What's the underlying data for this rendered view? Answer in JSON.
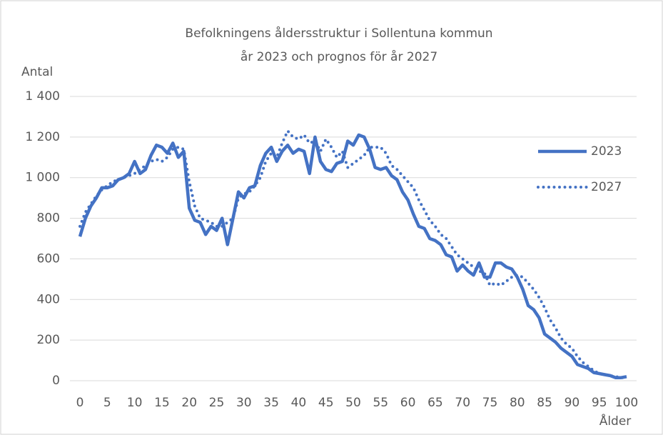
{
  "chart_data": {
    "type": "line",
    "title": [
      "Befolkningens åldersstruktur i Sollentuna kommun",
      "år 2023 och prognos för år 2027"
    ],
    "ylabel": "Antal",
    "xlabel": "Ålder",
    "x": [
      0,
      1,
      2,
      3,
      4,
      5,
      6,
      7,
      8,
      9,
      10,
      11,
      12,
      13,
      14,
      15,
      16,
      17,
      18,
      19,
      20,
      21,
      22,
      23,
      24,
      25,
      26,
      27,
      28,
      29,
      30,
      31,
      32,
      33,
      34,
      35,
      36,
      37,
      38,
      39,
      40,
      41,
      42,
      43,
      44,
      45,
      46,
      47,
      48,
      49,
      50,
      51,
      52,
      53,
      54,
      55,
      56,
      57,
      58,
      59,
      60,
      61,
      62,
      63,
      64,
      65,
      66,
      67,
      68,
      69,
      70,
      71,
      72,
      73,
      74,
      75,
      76,
      77,
      78,
      79,
      80,
      81,
      82,
      83,
      84,
      85,
      86,
      87,
      88,
      89,
      90,
      91,
      92,
      93,
      94,
      95,
      96,
      97,
      98,
      99,
      100
    ],
    "series": [
      {
        "name": "2023",
        "color": "#4472c4",
        "dash": "solid",
        "values": [
          710,
          800,
          860,
          900,
          950,
          950,
          960,
          990,
          1000,
          1020,
          1080,
          1020,
          1040,
          1110,
          1160,
          1150,
          1120,
          1170,
          1100,
          1130,
          850,
          790,
          780,
          720,
          760,
          740,
          800,
          670,
          800,
          930,
          900,
          950,
          960,
          1060,
          1120,
          1150,
          1080,
          1130,
          1160,
          1120,
          1140,
          1130,
          1020,
          1200,
          1080,
          1040,
          1030,
          1070,
          1080,
          1180,
          1160,
          1210,
          1200,
          1140,
          1050,
          1040,
          1050,
          1010,
          990,
          930,
          890,
          820,
          760,
          750,
          700,
          690,
          670,
          620,
          610,
          540,
          570,
          540,
          520,
          580,
          510,
          510,
          580,
          580,
          560,
          550,
          510,
          450,
          370,
          350,
          310,
          230,
          210,
          190,
          160,
          140,
          120,
          80,
          70,
          60,
          40,
          35,
          30,
          25,
          15,
          15,
          20
        ]
      },
      {
        "name": "2027",
        "color": "#4472c4",
        "dash": "dotted",
        "values": [
          760,
          830,
          870,
          910,
          940,
          960,
          980,
          990,
          1000,
          1010,
          1020,
          1040,
          1060,
          1080,
          1090,
          1080,
          1100,
          1140,
          1150,
          1140,
          980,
          860,
          800,
          790,
          780,
          760,
          760,
          780,
          800,
          900,
          920,
          930,
          960,
          1000,
          1080,
          1120,
          1100,
          1170,
          1230,
          1200,
          1190,
          1210,
          1170,
          1180,
          1130,
          1190,
          1150,
          1100,
          1130,
          1050,
          1070,
          1090,
          1110,
          1150,
          1150,
          1150,
          1120,
          1060,
          1040,
          1010,
          980,
          950,
          890,
          840,
          790,
          760,
          720,
          700,
          660,
          620,
          600,
          580,
          560,
          540,
          530,
          470,
          480,
          470,
          490,
          510,
          520,
          510,
          480,
          450,
          410,
          360,
          300,
          260,
          210,
          180,
          160,
          120,
          90,
          70,
          50,
          35,
          30,
          25,
          20,
          15,
          15
        ]
      }
    ],
    "xlim": [
      0,
      100
    ],
    "xticks": [
      0,
      5,
      10,
      15,
      20,
      25,
      30,
      35,
      40,
      45,
      50,
      55,
      60,
      65,
      70,
      75,
      80,
      85,
      90,
      95,
      100
    ],
    "ylim": [
      0,
      1400
    ],
    "yticks": [
      0,
      200,
      400,
      600,
      800,
      {
        "value": 1000,
        "label": "1 000"
      },
      {
        "value": 1200,
        "label": "1 200"
      },
      {
        "value": 1400,
        "label": "1 400"
      }
    ],
    "grid": true,
    "legend": "right"
  }
}
